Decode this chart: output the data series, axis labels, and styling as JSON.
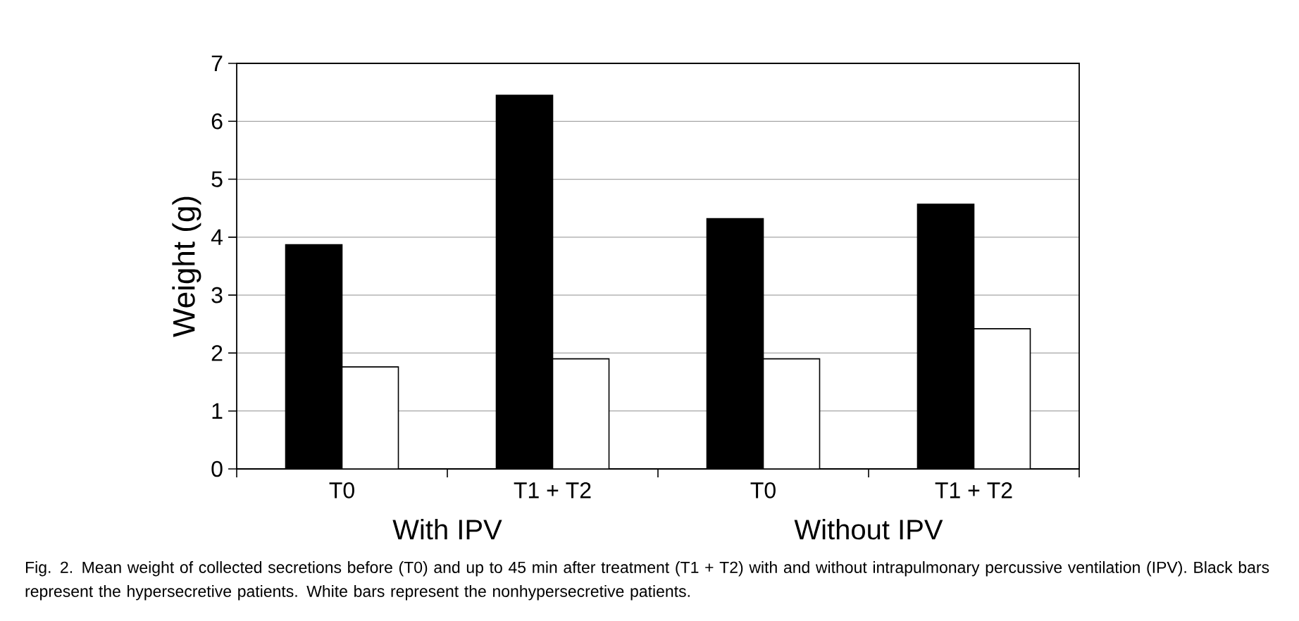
{
  "chart_data": {
    "type": "bar",
    "ylabel": "Weight (g)",
    "categories": [
      "T0",
      "T1 + T2",
      "T0",
      "T1 + T2"
    ],
    "series": [
      {
        "color": "#000000",
        "values": [
          3.87,
          6.45,
          4.32,
          4.57
        ]
      },
      {
        "color": "#ffffff",
        "values": [
          1.76,
          1.9,
          1.9,
          2.42
        ]
      }
    ],
    "ylim": [
      0,
      7
    ],
    "yticks": [
      0,
      1,
      2,
      3,
      4,
      5,
      6,
      7
    ],
    "grid": "y",
    "annotations": [
      "With IPV",
      "Without IPV",
      "Fig. 2. Mean weight of collected secretions before (T0) and up to 45 min after treatment (T1 + T2) with and without intrapulmonary percussive ventilation (IPV). Black bars represent the hypersecretive patients. White bars represent the nonhypersecretive patients."
    ]
  }
}
